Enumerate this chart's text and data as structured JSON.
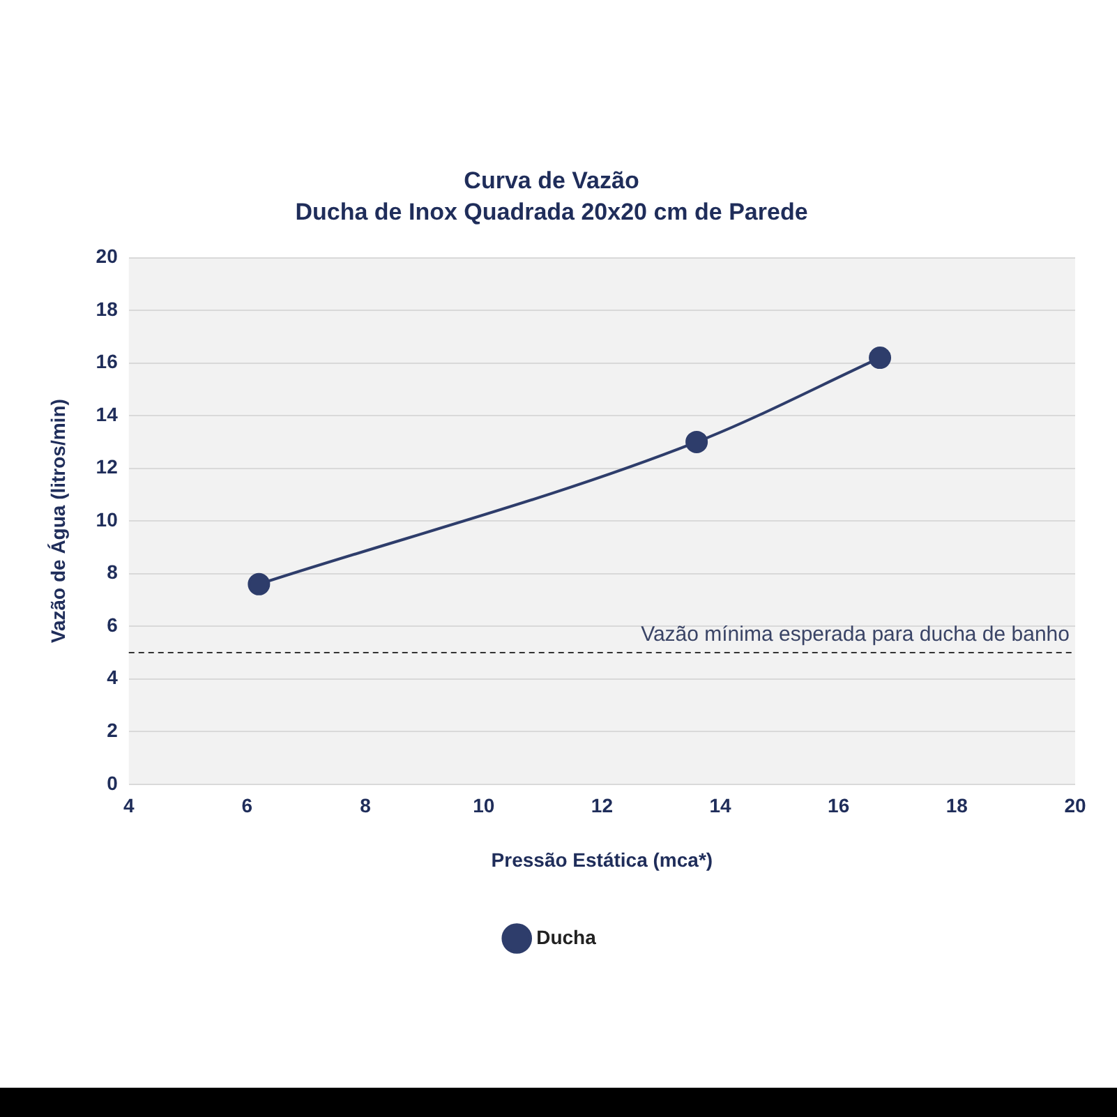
{
  "chart_data": {
    "type": "line",
    "title": "Curva de Vazão",
    "subtitle": "Ducha de Inox Quadrada 20x20 cm de Parede",
    "xlabel": "Pressão Estática (mca*)",
    "ylabel": "Vazão de Água (litros/min)",
    "series": [
      {
        "name": "Ducha",
        "color": "#2e3d6b",
        "x": [
          6.2,
          13.6,
          16.7
        ],
        "values": [
          7.6,
          13.0,
          16.2
        ]
      }
    ],
    "xlim": [
      4,
      20
    ],
    "xticks": [
      4,
      6,
      8,
      10,
      12,
      14,
      16,
      18,
      20
    ],
    "ylim": [
      0,
      20
    ],
    "yticks": [
      0,
      2,
      4,
      6,
      8,
      10,
      12,
      14,
      16,
      18,
      20
    ],
    "ref_lines": [
      {
        "axis": "y",
        "value": 5,
        "label": "Vazão mínima esperada para ducha de banho",
        "color": "#333333",
        "line_style": "dashed"
      }
    ],
    "grid": "y",
    "legend": "bottom",
    "marker": "circle",
    "line_style": "solid"
  }
}
